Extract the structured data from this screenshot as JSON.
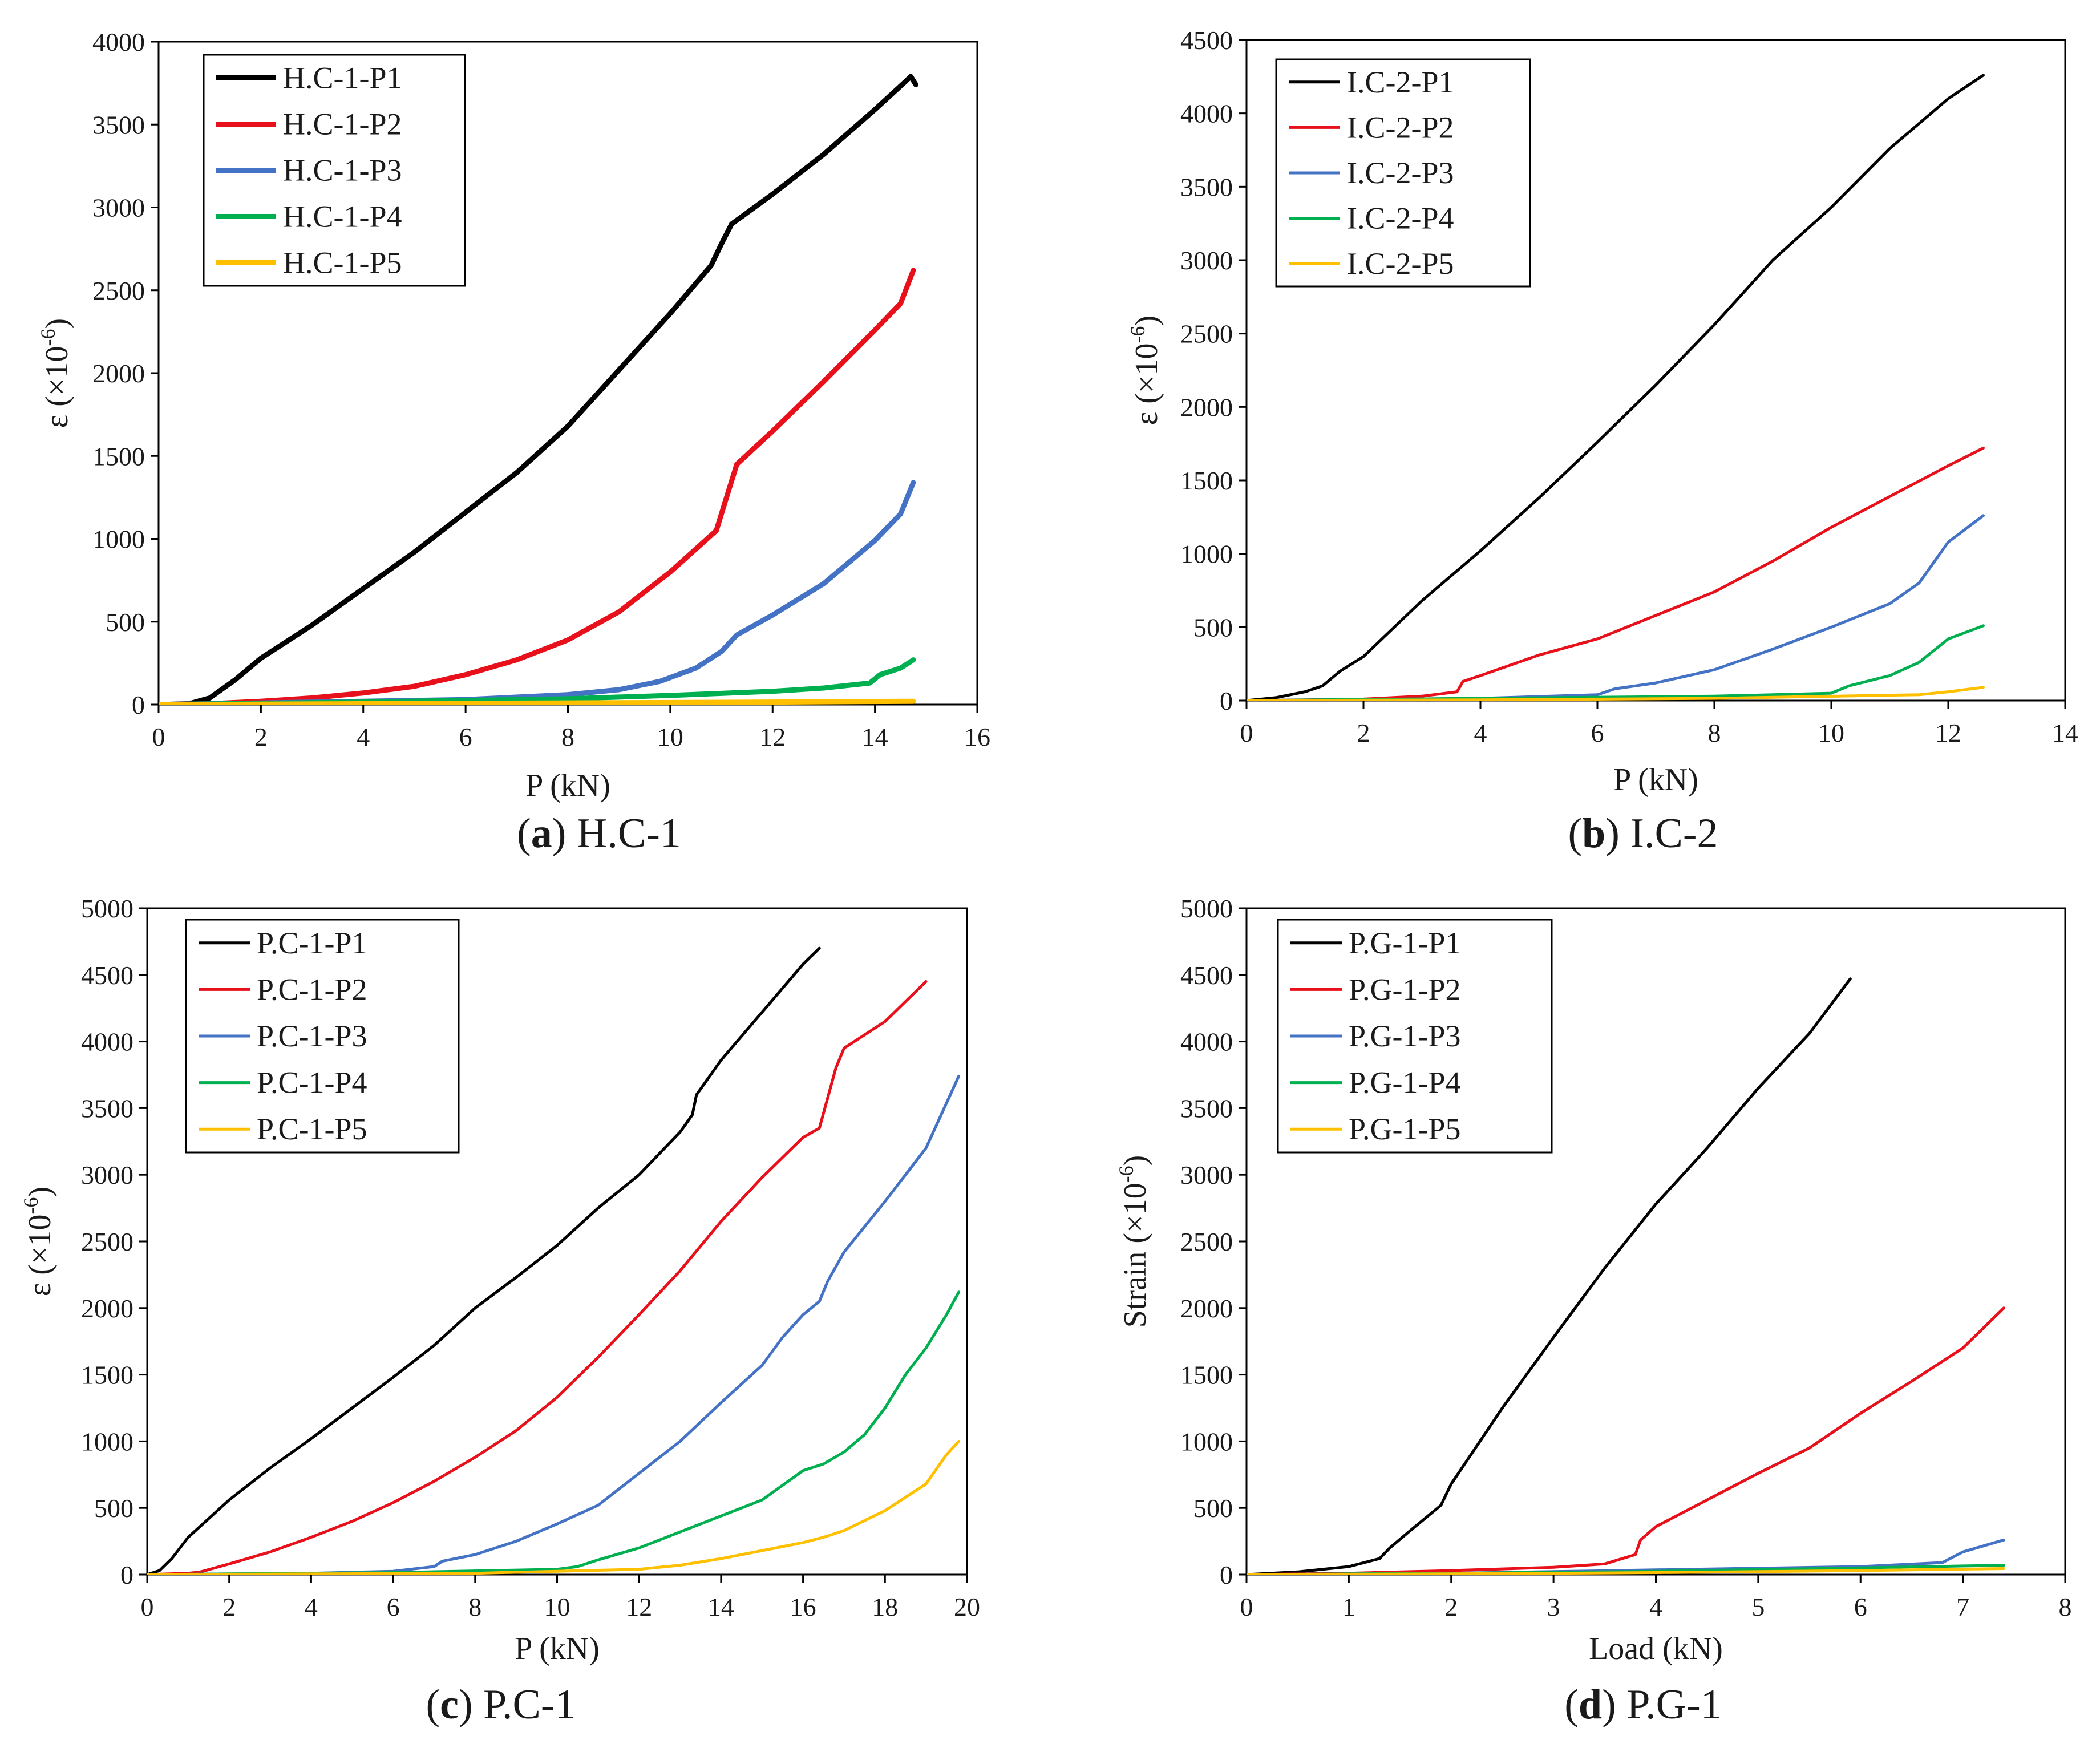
{
  "chart_data": [
    {
      "type": "line",
      "panel_id": "a",
      "caption_letter": "(a)",
      "caption_label": "H.C-1",
      "xlabel": "P (kN)",
      "ylabel": "ε (×10⁻⁶)",
      "xlim": [
        0,
        16
      ],
      "ylim": [
        0,
        4000
      ],
      "xticks": [
        0,
        2,
        4,
        6,
        8,
        10,
        12,
        14,
        16
      ],
      "yticks": [
        0,
        500,
        1000,
        1500,
        2000,
        2500,
        3000,
        3500,
        4000
      ],
      "legend_position": "top-left",
      "series": [
        {
          "name": "H.C-1-P1",
          "color": "#000000",
          "x": [
            0,
            0.6,
            1.0,
            1.5,
            2.0,
            3.0,
            4.0,
            5.0,
            6.0,
            7.0,
            8.0,
            9.0,
            10.0,
            10.8,
            11.0,
            11.2,
            12.0,
            13.0,
            14.0,
            14.6,
            14.7,
            14.8
          ],
          "y": [
            0,
            5,
            40,
            150,
            280,
            480,
            700,
            920,
            1160,
            1400,
            1680,
            2020,
            2360,
            2650,
            2780,
            2900,
            3080,
            3320,
            3590,
            3760,
            3790,
            3740
          ]
        },
        {
          "name": "H.C-1-P2",
          "color": "#e8101a",
          "x": [
            0,
            1.0,
            2.0,
            3.0,
            4.0,
            5.0,
            6.0,
            7.0,
            8.0,
            9.0,
            10.0,
            10.9,
            11.1,
            11.3,
            12.0,
            13.0,
            14.0,
            14.5,
            14.75
          ],
          "y": [
            0,
            5,
            20,
            40,
            70,
            110,
            180,
            270,
            390,
            560,
            800,
            1050,
            1250,
            1450,
            1650,
            1950,
            2260,
            2420,
            2620
          ]
        },
        {
          "name": "H.C-1-P3",
          "color": "#4472c4",
          "x": [
            0,
            2.0,
            4.0,
            6.0,
            8.0,
            9.0,
            9.8,
            10.5,
            11.0,
            11.3,
            12.0,
            13.0,
            14.0,
            14.5,
            14.75
          ],
          "y": [
            0,
            10,
            20,
            30,
            60,
            90,
            140,
            220,
            320,
            420,
            540,
            730,
            990,
            1150,
            1340
          ]
        },
        {
          "name": "H.C-1-P4",
          "color": "#00b050",
          "x": [
            0,
            4.0,
            8.0,
            10.0,
            12.0,
            13.0,
            13.9,
            14.1,
            14.5,
            14.75
          ],
          "y": [
            0,
            15,
            35,
            55,
            80,
            100,
            130,
            180,
            220,
            270
          ]
        },
        {
          "name": "H.C-1-P5",
          "color": "#ffc000",
          "x": [
            0,
            4.0,
            8.0,
            12.0,
            14.75
          ],
          "y": [
            0,
            5,
            10,
            15,
            20
          ]
        }
      ]
    },
    {
      "type": "line",
      "panel_id": "b",
      "caption_letter": "(b)",
      "caption_label": "I.C-2",
      "xlabel": "P (kN)",
      "ylabel": "ε (×10⁻⁶)",
      "xlim": [
        0,
        14
      ],
      "ylim": [
        0,
        4500
      ],
      "xticks": [
        0,
        2,
        4,
        6,
        8,
        10,
        12,
        14
      ],
      "yticks": [
        0,
        500,
        1000,
        1500,
        2000,
        2500,
        3000,
        3500,
        4000,
        4500
      ],
      "legend_position": "top-left",
      "series": [
        {
          "name": "I.C-2-P1",
          "color": "#000000",
          "x": [
            0,
            0.5,
            1.0,
            1.3,
            1.6,
            2.0,
            3.0,
            4.0,
            5.0,
            6.0,
            7.0,
            8.0,
            9.0,
            10.0,
            11.0,
            12.0,
            12.6
          ],
          "y": [
            0,
            20,
            60,
            100,
            200,
            300,
            680,
            1020,
            1380,
            1760,
            2150,
            2560,
            3000,
            3360,
            3760,
            4100,
            4260
          ]
        },
        {
          "name": "I.C-2-P2",
          "color": "#e8101a",
          "x": [
            0,
            2.0,
            3.0,
            3.6,
            3.7,
            4.0,
            5.0,
            6.0,
            7.0,
            8.0,
            9.0,
            10.0,
            11.0,
            12.0,
            12.6
          ],
          "y": [
            0,
            10,
            30,
            60,
            130,
            170,
            310,
            420,
            580,
            740,
            950,
            1180,
            1390,
            1600,
            1720
          ]
        },
        {
          "name": "I.C-2-P3",
          "color": "#4472c4",
          "x": [
            0,
            4.0,
            6.0,
            6.3,
            7.0,
            8.0,
            9.0,
            10.0,
            10.5,
            11.0,
            11.5,
            12.0,
            12.6
          ],
          "y": [
            0,
            15,
            40,
            80,
            120,
            210,
            350,
            500,
            580,
            660,
            800,
            1080,
            1260
          ]
        },
        {
          "name": "I.C-2-P4",
          "color": "#00b050",
          "x": [
            0,
            4.0,
            8.0,
            10.0,
            10.3,
            11.0,
            11.5,
            12.0,
            12.6
          ],
          "y": [
            0,
            15,
            30,
            50,
            100,
            170,
            260,
            420,
            510
          ]
        },
        {
          "name": "I.C-2-P5",
          "color": "#ffc000",
          "x": [
            0,
            4.0,
            8.0,
            11.5,
            12.0,
            12.6
          ],
          "y": [
            0,
            5,
            15,
            40,
            60,
            90
          ]
        }
      ]
    },
    {
      "type": "line",
      "panel_id": "c",
      "caption_letter": "(c)",
      "caption_label": "P.C-1",
      "xlabel": "P (kN)",
      "ylabel": "ε (×10⁻⁶)",
      "xlim": [
        0,
        20
      ],
      "ylim": [
        0,
        5000
      ],
      "xticks": [
        0,
        2,
        4,
        6,
        8,
        10,
        12,
        14,
        16,
        18,
        20
      ],
      "yticks": [
        0,
        500,
        1000,
        1500,
        2000,
        2500,
        3000,
        3500,
        4000,
        4500,
        5000
      ],
      "legend_position": "top-left",
      "series": [
        {
          "name": "P.C-1-P1",
          "color": "#000000",
          "x": [
            0,
            0.3,
            0.6,
            1.0,
            2.0,
            3.0,
            4.0,
            5.0,
            6.0,
            7.0,
            8.0,
            9.0,
            10.0,
            11.0,
            12.0,
            13.0,
            13.3,
            13.4,
            14.0,
            15.0,
            16.0,
            16.4
          ],
          "y": [
            0,
            30,
            120,
            280,
            560,
            800,
            1020,
            1250,
            1480,
            1720,
            2000,
            2230,
            2470,
            2750,
            3000,
            3320,
            3450,
            3600,
            3860,
            4220,
            4580,
            4700
          ]
        },
        {
          "name": "P.C-1-P2",
          "color": "#e8101a",
          "x": [
            0,
            1.0,
            1.3,
            2.0,
            3.0,
            4.0,
            5.0,
            6.0,
            7.0,
            8.0,
            9.0,
            10.0,
            11.0,
            12.0,
            13.0,
            14.0,
            15.0,
            16.0,
            16.4,
            16.8,
            17.0,
            18.0,
            19.0
          ],
          "y": [
            0,
            10,
            20,
            80,
            170,
            280,
            400,
            540,
            700,
            880,
            1080,
            1330,
            1630,
            1950,
            2280,
            2650,
            2980,
            3280,
            3350,
            3800,
            3950,
            4150,
            4450
          ]
        },
        {
          "name": "P.C-1-P3",
          "color": "#4472c4",
          "x": [
            0,
            4.0,
            6.0,
            7.0,
            7.2,
            8.0,
            9.0,
            10.0,
            11.0,
            12.0,
            13.0,
            14.0,
            15.0,
            15.5,
            16.0,
            16.4,
            16.6,
            17.0,
            18.0,
            19.0,
            19.8
          ],
          "y": [
            0,
            10,
            25,
            60,
            100,
            150,
            250,
            380,
            520,
            760,
            1000,
            1290,
            1570,
            1780,
            1950,
            2050,
            2200,
            2420,
            2800,
            3200,
            3740
          ]
        },
        {
          "name": "P.C-1-P4",
          "color": "#00b050",
          "x": [
            0,
            6.0,
            10.0,
            10.5,
            11.0,
            12.0,
            13.0,
            14.0,
            15.0,
            16.0,
            16.5,
            17.0,
            17.5,
            18.0,
            18.5,
            19.0,
            19.5,
            19.8
          ],
          "y": [
            0,
            15,
            40,
            60,
            110,
            200,
            320,
            440,
            560,
            780,
            830,
            920,
            1050,
            1250,
            1500,
            1700,
            1950,
            2120
          ]
        },
        {
          "name": "P.C-1-P5",
          "color": "#ffc000",
          "x": [
            0,
            8.0,
            12.0,
            13.0,
            14.0,
            15.0,
            16.0,
            16.5,
            17.0,
            18.0,
            19.0,
            19.5,
            19.8
          ],
          "y": [
            0,
            10,
            40,
            70,
            120,
            180,
            240,
            280,
            330,
            480,
            680,
            900,
            1000
          ]
        }
      ]
    },
    {
      "type": "line",
      "panel_id": "d",
      "caption_letter": "(d)",
      "caption_label": "P.G-1",
      "xlabel": "Load (kN)",
      "ylabel": "Strain (×10⁻⁶)",
      "xlim": [
        0,
        8
      ],
      "ylim": [
        0,
        5000
      ],
      "xticks": [
        0,
        1,
        2,
        3,
        4,
        5,
        6,
        7,
        8
      ],
      "yticks": [
        0,
        500,
        1000,
        1500,
        2000,
        2500,
        3000,
        3500,
        4000,
        4500,
        5000
      ],
      "legend_position": "top-left",
      "series": [
        {
          "name": "P.G-1-P1",
          "color": "#000000",
          "x": [
            0,
            0.5,
            1.0,
            1.3,
            1.4,
            1.6,
            1.9,
            2.0,
            2.5,
            3.0,
            3.5,
            4.0,
            4.5,
            5.0,
            5.5,
            5.9
          ],
          "y": [
            0,
            20,
            60,
            120,
            200,
            330,
            520,
            680,
            1250,
            1780,
            2300,
            2780,
            3200,
            3650,
            4060,
            4470
          ]
        },
        {
          "name": "P.G-1-P2",
          "color": "#e8101a",
          "x": [
            0,
            1.0,
            2.0,
            3.0,
            3.5,
            3.8,
            3.85,
            4.0,
            4.5,
            5.0,
            5.5,
            6.0,
            6.5,
            7.0,
            7.4
          ],
          "y": [
            0,
            10,
            30,
            55,
            80,
            150,
            260,
            360,
            560,
            760,
            950,
            1210,
            1450,
            1700,
            2000
          ]
        },
        {
          "name": "P.G-1-P3",
          "color": "#4472c4",
          "x": [
            0,
            2.0,
            4.0,
            6.0,
            6.8,
            7.0,
            7.4
          ],
          "y": [
            0,
            10,
            35,
            60,
            90,
            170,
            260
          ]
        },
        {
          "name": "P.G-1-P4",
          "color": "#00b050",
          "x": [
            0,
            2.0,
            4.0,
            6.0,
            7.4
          ],
          "y": [
            0,
            10,
            25,
            50,
            70
          ]
        },
        {
          "name": "P.G-1-P5",
          "color": "#ffc000",
          "x": [
            0,
            2.0,
            4.0,
            6.0,
            7.4
          ],
          "y": [
            0,
            5,
            15,
            30,
            45
          ]
        }
      ]
    }
  ]
}
